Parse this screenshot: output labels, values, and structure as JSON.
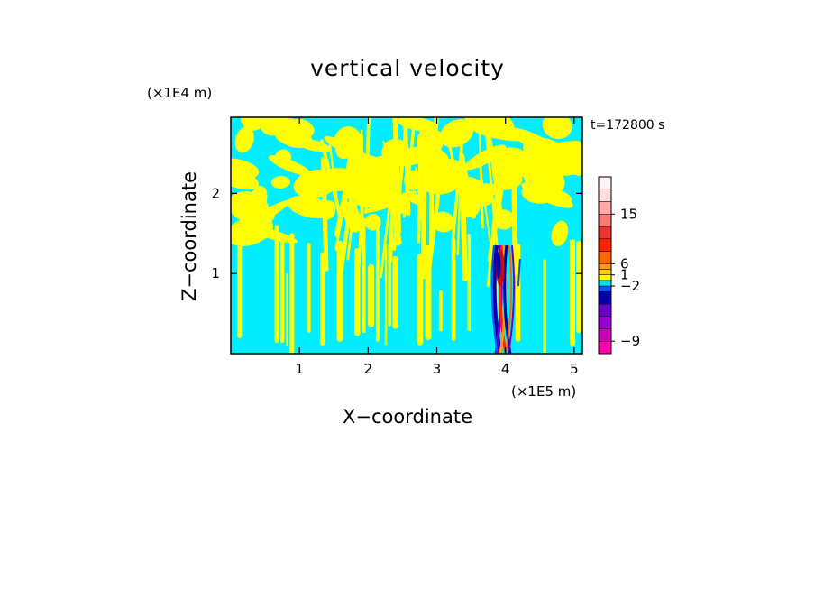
{
  "chart_data": {
    "type": "heatmap",
    "title": "vertical velocity",
    "xlabel": "X−coordinate",
    "ylabel": "Z−coordinate",
    "x_unit": "(×1E5 m)",
    "y_unit": "(×1E4 m)",
    "time_label": "t=172800 s",
    "xlim": [
      0,
      5.12
    ],
    "ylim": [
      0,
      2.95
    ],
    "x_ticks": [
      {
        "value": 1,
        "label": "1"
      },
      {
        "value": 2,
        "label": "2"
      },
      {
        "value": 3,
        "label": "3"
      },
      {
        "value": 4,
        "label": "4"
      },
      {
        "value": 5,
        "label": "5"
      }
    ],
    "y_ticks": [
      {
        "value": 1,
        "label": "1"
      },
      {
        "value": 2,
        "label": "2"
      }
    ],
    "colorbar": {
      "levels": [
        {
          "color": "#ff00aa"
        },
        {
          "color": "#cc00bb"
        },
        {
          "color": "#9900cc"
        },
        {
          "color": "#6600cc"
        },
        {
          "color": "#0000aa"
        },
        {
          "color": "#0055ff"
        },
        {
          "color": "#00ddff"
        },
        {
          "color": "#ffff00"
        },
        {
          "color": "#ffcc00"
        },
        {
          "color": "#ff9900"
        },
        {
          "color": "#ff6600"
        },
        {
          "color": "#ff2200"
        },
        {
          "color": "#ee3333"
        },
        {
          "color": "#ff7777"
        },
        {
          "color": "#ffaaaa"
        },
        {
          "color": "#ffdddd"
        },
        {
          "color": "#fff4f4"
        }
      ],
      "tick_labels": [
        {
          "level": 1,
          "label": "−9"
        },
        {
          "level": 6,
          "label": "−2"
        },
        {
          "level": 8,
          "label": "1"
        },
        {
          "level": 10,
          "label": "6"
        },
        {
          "level": 14,
          "label": "15"
        }
      ]
    },
    "field": {
      "dominant_colors": [
        "#00eeff",
        "#ffff00"
      ],
      "disturbance_x": 3.95,
      "disturbance_top": 1.35
    }
  }
}
